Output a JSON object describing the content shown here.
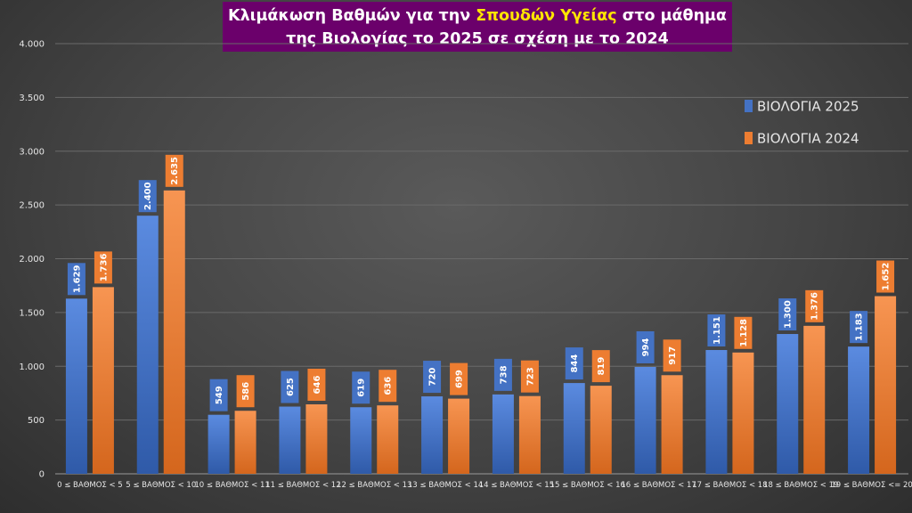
{
  "title": {
    "line1_pre": "Κλιμάκωση Βαθμών για την ",
    "line1_highlight": "Σπουδών Υγείας",
    "line1_post": " στο μάθημα",
    "line2": "της Βιολογίας το 2025 σε σχέση με το 2024"
  },
  "chart_data": {
    "type": "bar",
    "title": "Κλιμάκωση Βαθμών για την Σπουδών Υγείας στο μάθημα της Βιολογίας το 2025 σε σχέση με το 2024",
    "categories": [
      "0 ≤ ΒΑΘΜΟΣ < 5",
      "5 ≤ ΒΑΘΜΟΣ < 10",
      "10 ≤ ΒΑΘΜΟΣ < 11",
      "11 ≤ ΒΑΘΜΟΣ < 12",
      "12 ≤ ΒΑΘΜΟΣ < 13",
      "13 ≤ ΒΑΘΜΟΣ < 14",
      "14 ≤ ΒΑΘΜΟΣ < 15",
      "15 ≤ ΒΑΘΜΟΣ < 16",
      "16 ≤ ΒΑΘΜΟΣ < 17",
      "17 ≤ ΒΑΘΜΟΣ < 18",
      "18 ≤ ΒΑΘΜΟΣ < 19",
      "19 ≤ ΒΑΘΜΟΣ <= 20"
    ],
    "series": [
      {
        "name": "ΒΙΟΛΟΓΙΑ 2025",
        "color": "#4472c4",
        "values": [
          1629,
          2400,
          549,
          625,
          619,
          720,
          738,
          844,
          994,
          1151,
          1300,
          1183
        ],
        "labels": [
          "1.629",
          "2.400",
          "549",
          "625",
          "619",
          "720",
          "738",
          "844",
          "994",
          "1.151",
          "1.300",
          "1.183"
        ]
      },
      {
        "name": "ΒΙΟΛΟΓΙΑ 2024",
        "color": "#ed7d31",
        "values": [
          1736,
          2635,
          586,
          646,
          636,
          699,
          723,
          819,
          917,
          1128,
          1376,
          1652
        ],
        "labels": [
          "1.736",
          "2.635",
          "586",
          "646",
          "636",
          "699",
          "723",
          "819",
          "917",
          "1.128",
          "1.376",
          "1.652"
        ]
      }
    ],
    "yticks": [
      0,
      500,
      1000,
      1500,
      2000,
      2500,
      3000,
      3500,
      4000
    ],
    "ytick_labels": [
      "0",
      "500",
      "1.000",
      "1.500",
      "2.000",
      "2.500",
      "3.000",
      "3.500",
      "4.000"
    ],
    "ylim": [
      0,
      4000
    ],
    "grid": true,
    "legend_position": "top-right",
    "xlabel": "",
    "ylabel": ""
  }
}
